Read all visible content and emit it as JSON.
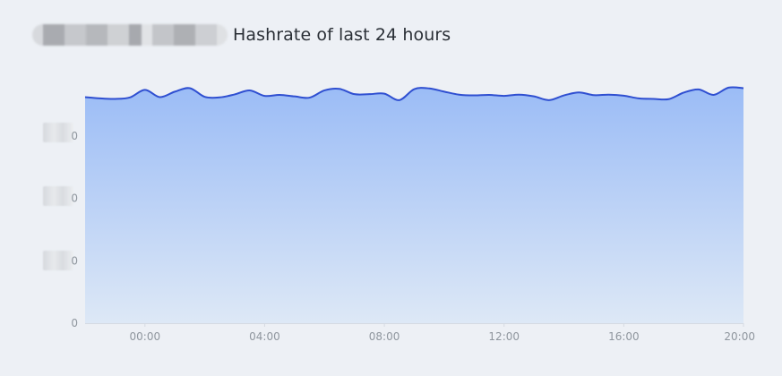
{
  "title": "Hashrate of last 24 hours",
  "chart_data": {
    "type": "area",
    "title": "Hashrate of last 24 hours",
    "xlabel": "",
    "ylabel": "",
    "x_ticks": [
      "00:00",
      "04:00",
      "08:00",
      "12:00",
      "16:00",
      "20:00"
    ],
    "y_ticks": [
      "0",
      "0",
      "0",
      "0"
    ],
    "xlim": [
      -2,
      20
    ],
    "ylim": [
      0,
      100
    ],
    "grid": true,
    "legend": "none",
    "colors": {
      "line": "#2f4fd1",
      "fill_top": "#9bbcf6",
      "fill_bottom": "#dde8f6",
      "grid": "#e3e7ee"
    },
    "series": [
      {
        "x": [
          -2,
          -1.5,
          -1,
          -0.5,
          0,
          0.5,
          1,
          1.5,
          2,
          2.5,
          3,
          3.5,
          4,
          4.5,
          5,
          5.5,
          6,
          6.5,
          7,
          7.5,
          8,
          8.5,
          9,
          9.5,
          10,
          10.5,
          11,
          11.5,
          12,
          12.5,
          13,
          13.5,
          14,
          14.5,
          15,
          15.5,
          16,
          16.5,
          17,
          17.5,
          18,
          18.5,
          19,
          19.5,
          20
        ],
        "values": [
          90.5,
          90,
          89.8,
          90.4,
          93.4,
          90.5,
          92.7,
          94.1,
          90.6,
          90.4,
          91.6,
          93.2,
          91,
          91.4,
          90.8,
          90.3,
          93.2,
          93.8,
          91.7,
          91.7,
          91.9,
          89.3,
          93.7,
          94,
          92.7,
          91.5,
          91.2,
          91.4,
          91,
          91.5,
          90.8,
          89.3,
          91.2,
          92.4,
          91.3,
          91.5,
          91.1,
          90,
          89.8,
          89.7,
          92.3,
          93.6,
          91.4,
          94.3,
          94.1
        ]
      }
    ]
  }
}
